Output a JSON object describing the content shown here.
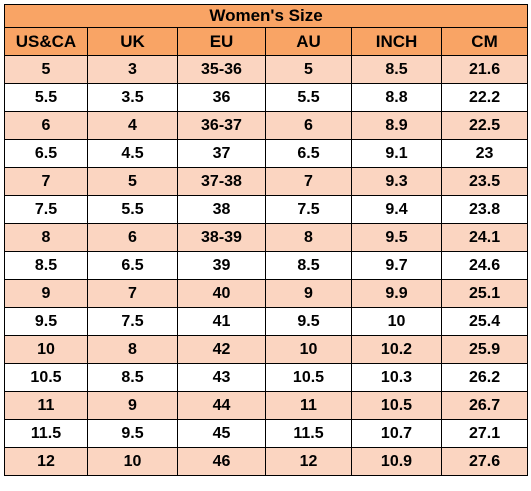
{
  "title": "Women's Size",
  "columns": [
    "US&CA",
    "UK",
    "EU",
    "AU",
    "INCH",
    "CM"
  ],
  "colors": {
    "header_bg": "#f9a465",
    "shaded_row_bg": "#fbd5c1",
    "plain_row_bg": "#ffffff",
    "border": "#000000"
  },
  "rows": [
    [
      "5",
      "3",
      "35-36",
      "5",
      "8.5",
      "21.6"
    ],
    [
      "5.5",
      "3.5",
      "36",
      "5.5",
      "8.8",
      "22.2"
    ],
    [
      "6",
      "4",
      "36-37",
      "6",
      "8.9",
      "22.5"
    ],
    [
      "6.5",
      "4.5",
      "37",
      "6.5",
      "9.1",
      "23"
    ],
    [
      "7",
      "5",
      "37-38",
      "7",
      "9.3",
      "23.5"
    ],
    [
      "7.5",
      "5.5",
      "38",
      "7.5",
      "9.4",
      "23.8"
    ],
    [
      "8",
      "6",
      "38-39",
      "8",
      "9.5",
      "24.1"
    ],
    [
      "8.5",
      "6.5",
      "39",
      "8.5",
      "9.7",
      "24.6"
    ],
    [
      "9",
      "7",
      "40",
      "9",
      "9.9",
      "25.1"
    ],
    [
      "9.5",
      "7.5",
      "41",
      "9.5",
      "10",
      "25.4"
    ],
    [
      "10",
      "8",
      "42",
      "10",
      "10.2",
      "25.9"
    ],
    [
      "10.5",
      "8.5",
      "43",
      "10.5",
      "10.3",
      "26.2"
    ],
    [
      "11",
      "9",
      "44",
      "11",
      "10.5",
      "26.7"
    ],
    [
      "11.5",
      "9.5",
      "45",
      "11.5",
      "10.7",
      "27.1"
    ],
    [
      "12",
      "10",
      "46",
      "12",
      "10.9",
      "27.6"
    ]
  ]
}
